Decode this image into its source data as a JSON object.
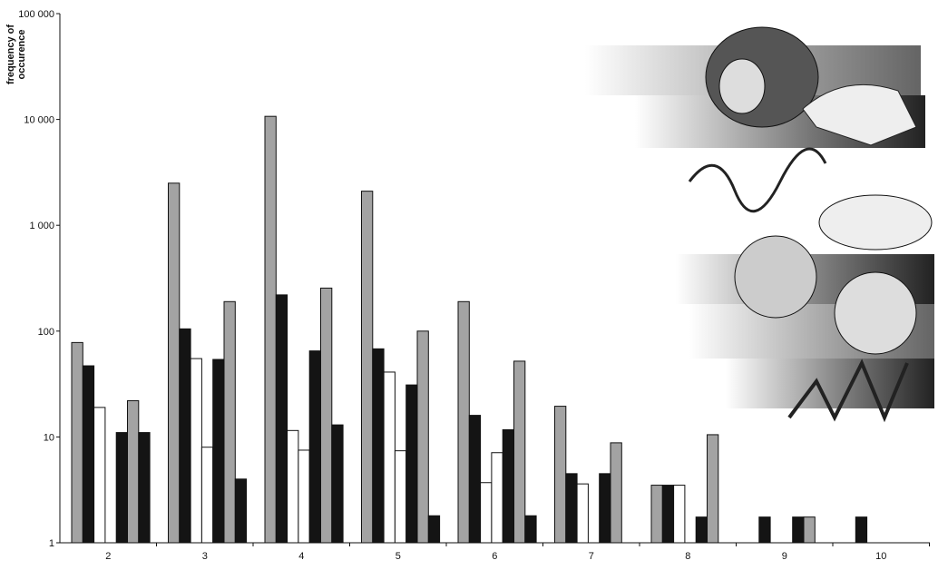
{
  "chart_data": {
    "type": "bar",
    "y_label": "frequency of occurence",
    "log_scale": true,
    "categories": [
      "2",
      "3",
      "4",
      "5",
      "6",
      "7",
      "8",
      "9",
      "10"
    ],
    "ylim": [
      1,
      100000
    ],
    "yticks": [
      1,
      10,
      100,
      {
        "value": 1000,
        "label": "1 000"
      },
      {
        "value": 10000,
        "label": "10 000"
      },
      {
        "value": 100000,
        "label": "100 000"
      }
    ],
    "series": [
      {
        "color": "#a3a3a3",
        "values": [
          78,
          2500,
          10700,
          2100,
          190,
          19.5,
          3.5,
          null,
          null
        ]
      },
      {
        "color": "#141414",
        "values": [
          47,
          105,
          220,
          68,
          16,
          4.5,
          3.5,
          1.75,
          1.75
        ]
      },
      {
        "color": "#ffffff",
        "values": [
          19,
          55,
          11.5,
          41,
          3.7,
          3.6,
          3.5,
          null,
          null
        ]
      },
      {
        "color": "#ffffff",
        "values": [
          null,
          8,
          7.5,
          7.4,
          7.1,
          null,
          null,
          null,
          null
        ]
      },
      {
        "color": "#141414",
        "values": [
          11,
          54,
          65,
          31,
          11.7,
          4.5,
          1.75,
          1.75,
          null
        ]
      },
      {
        "color": "#a3a3a3",
        "values": [
          22,
          190,
          255,
          100,
          52,
          8.8,
          10.5,
          1.75,
          null
        ]
      },
      {
        "color": "#141414",
        "values": [
          11,
          4,
          13,
          1.8,
          1.8,
          null,
          null,
          null,
          null
        ]
      }
    ]
  }
}
